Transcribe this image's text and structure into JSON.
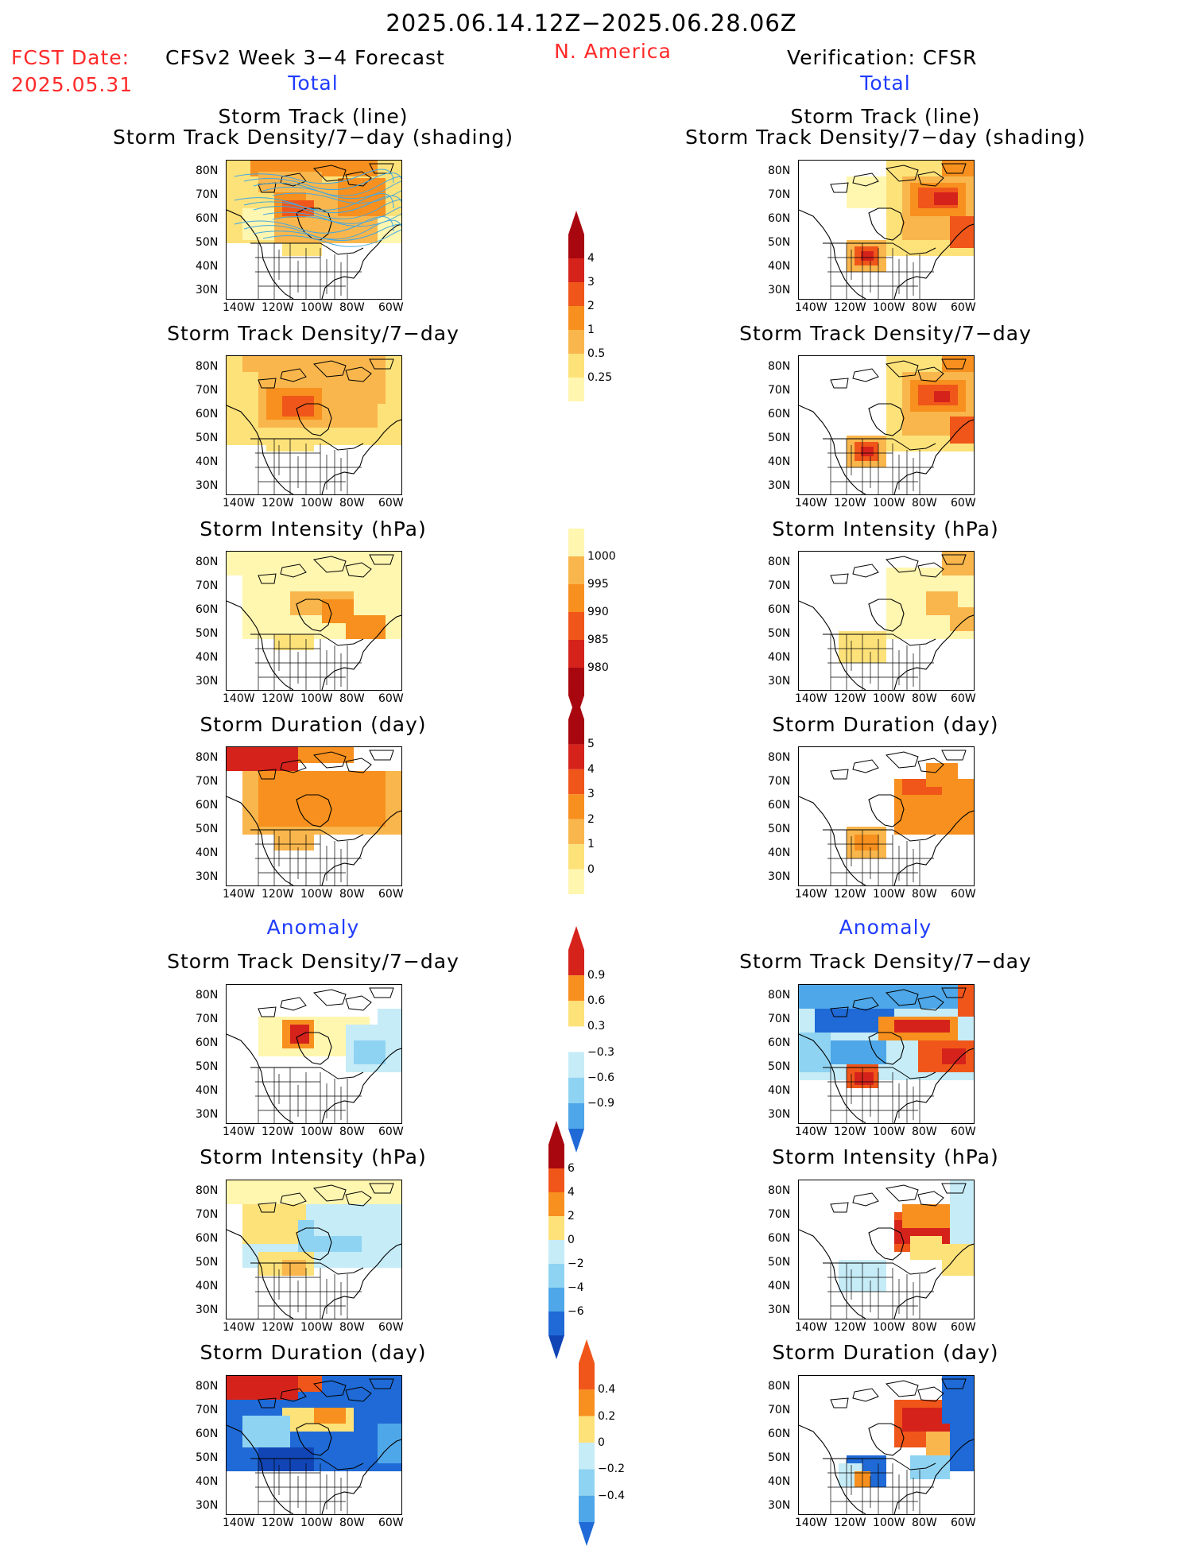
{
  "header": {
    "period": "2025.06.14.12Z−2025.06.28.06Z",
    "fcst_label": "FCST Date:",
    "fcst_date": "2025.05.31",
    "model": "CFSv2 Week 3−4 Forecast",
    "region": "N. America",
    "verification": "Verification: CFSR",
    "total_left": "Total",
    "total_right": "Total",
    "anomaly_left": "Anomaly",
    "anomaly_right": "Anomaly"
  },
  "panel_titles": {
    "track_line": "Storm Track (line)",
    "track_shading": "Storm Track Density/7−day (shading)",
    "density": "Storm Track Density/7−day",
    "intensity": "Storm Intensity (hPa)",
    "duration": "Storm Duration (day)"
  },
  "axes": {
    "lat_ticks": [
      "80N",
      "70N",
      "60N",
      "50N",
      "40N",
      "30N"
    ],
    "lon_ticks": [
      "140W",
      "120W",
      "100W",
      "80W",
      "60W"
    ]
  },
  "colors": {
    "c1": "#fff6b0",
    "c2": "#fde27a",
    "c3": "#f9b64c",
    "c4": "#f7901e",
    "c5": "#f0561a",
    "c6": "#d5231c",
    "c7": "#a8070f",
    "b1": "#c6ecf7",
    "b2": "#8fd3f2",
    "b3": "#4ea7e8",
    "b4": "#1f6ad6",
    "b5": "#1145b5",
    "track_line": "#44a8e0"
  },
  "colorbars": {
    "density_total": [
      "0.25",
      "0.5",
      "1",
      "2",
      "3",
      "4"
    ],
    "intensity_total": [
      "1000",
      "995",
      "990",
      "985",
      "980"
    ],
    "duration_total": [
      "0",
      "1",
      "2",
      "3",
      "4",
      "5"
    ],
    "density_anom": [
      "0.9",
      "0.6",
      "0.3",
      "−0.3",
      "−0.6",
      "−0.9"
    ],
    "intensity_anom": [
      "6",
      "4",
      "2",
      "0",
      "−2",
      "−4",
      "−6"
    ],
    "duration_anom": [
      "0.4",
      "0.2",
      "0",
      "−0.2",
      "−0.4"
    ]
  }
}
